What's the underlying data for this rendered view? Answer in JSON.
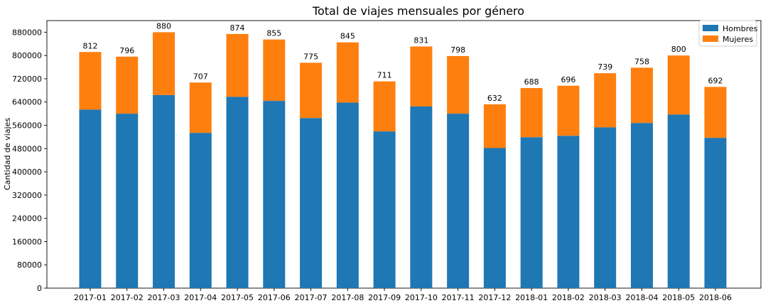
{
  "chart_data": {
    "type": "bar",
    "stacked": true,
    "title": "Total de viajes mensuales por género",
    "xlabel": "",
    "ylabel": "Cantidad de viajes",
    "ylim": [
      0,
      920000
    ],
    "yticks": [
      0,
      80000,
      160000,
      240000,
      320000,
      400000,
      480000,
      560000,
      640000,
      720000,
      800000,
      880000
    ],
    "categories": [
      "2017-01",
      "2017-02",
      "2017-03",
      "2017-04",
      "2017-05",
      "2017-06",
      "2017-07",
      "2017-08",
      "2017-09",
      "2017-10",
      "2017-11",
      "2017-12",
      "2018-01",
      "2018-02",
      "2018-03",
      "2018-04",
      "2018-05",
      "2018-06"
    ],
    "series": [
      {
        "name": "Hombres",
        "color": "#1f77b4",
        "values": [
          614000,
          600000,
          664000,
          534000,
          658000,
          644000,
          585000,
          638000,
          539000,
          625000,
          600000,
          482000,
          519000,
          524000,
          553000,
          568000,
          597000,
          517000
        ]
      },
      {
        "name": "Mujeres",
        "color": "#ff7f0e",
        "values": [
          198000,
          196000,
          216000,
          173000,
          216000,
          211000,
          190000,
          207000,
          172000,
          206000,
          198000,
          150000,
          169000,
          172000,
          186000,
          190000,
          203000,
          175000
        ]
      }
    ],
    "data_labels": [
      "812",
      "796",
      "880",
      "707",
      "874",
      "855",
      "775",
      "845",
      "711",
      "831",
      "798",
      "632",
      "688",
      "696",
      "739",
      "758",
      "800",
      "692"
    ],
    "legend": {
      "position": "top-right",
      "entries": [
        "Hombres",
        "Mujeres"
      ]
    },
    "grid": false
  }
}
